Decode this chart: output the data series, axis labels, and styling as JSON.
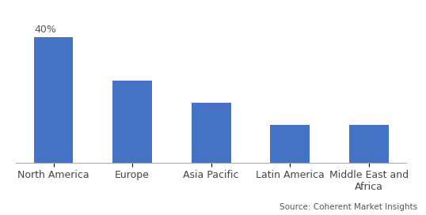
{
  "categories": [
    "North America",
    "Europe",
    "Asia Pacific",
    "Latin America",
    "Middle East and\nAfrica"
  ],
  "values": [
    40,
    26,
    19,
    12,
    12
  ],
  "bar_color": "#4472C4",
  "annotation": "40%",
  "annotation_bar_index": 0,
  "ylim": [
    0,
    48
  ],
  "ylabel": "",
  "xlabel": "",
  "source_text": "Source: Coherent Market Insights",
  "background_color": "#ffffff",
  "grid_color": "#cccccc",
  "bar_width": 0.5,
  "title_fontsize": 10,
  "label_fontsize": 9,
  "annotation_fontsize": 9
}
